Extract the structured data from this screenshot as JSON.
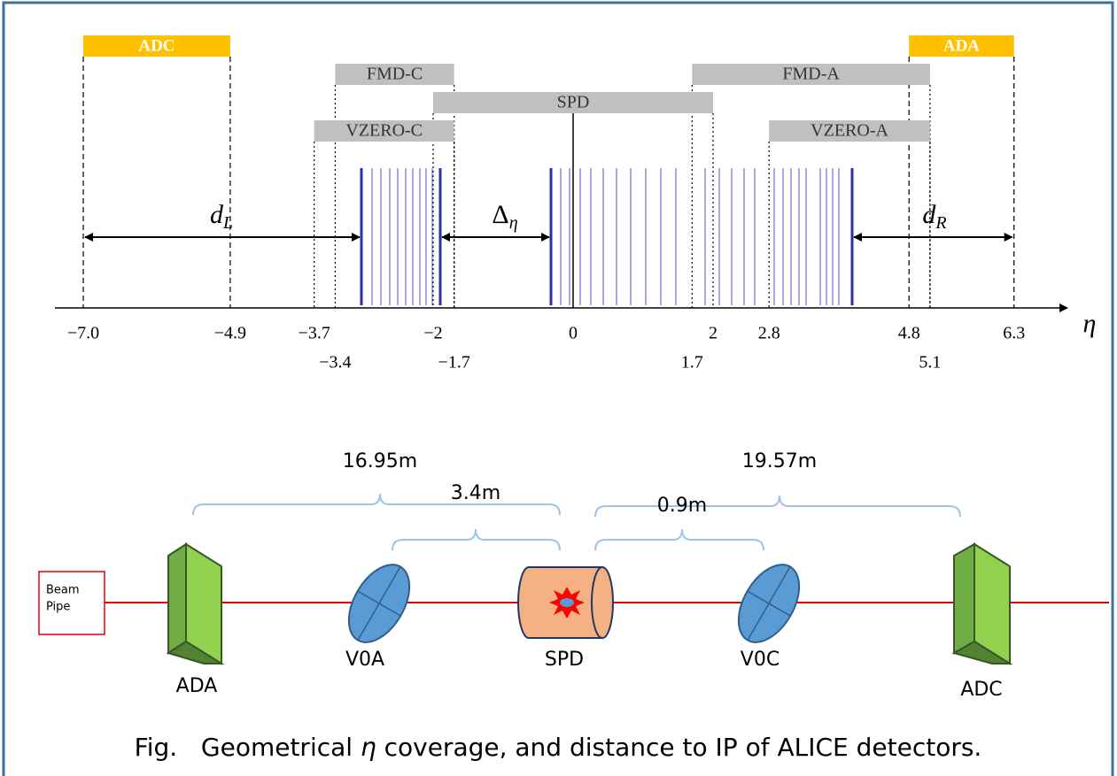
{
  "eta_chart": {
    "axis_label": "η",
    "ticks": [
      {
        "value": -7,
        "label": "−7.0"
      },
      {
        "value": -4.9,
        "label": "−4.9"
      },
      {
        "value": -3.7,
        "label": "−3.7"
      },
      {
        "value": -2,
        "label": "−2"
      },
      0,
      2,
      2.8,
      4.8,
      6.3
    ],
    "ticks_lower": [
      {
        "value": -3.4,
        "label": "−3.4"
      },
      {
        "value": -1.7,
        "label": "−1.7"
      },
      1.7,
      5.1
    ],
    "detectors": [
      {
        "label": "ADC",
        "range": [
          -7.0,
          -4.9
        ],
        "color": "#ffc000"
      },
      {
        "label": "ADA",
        "range": [
          4.8,
          6.3
        ],
        "color": "#ffc000"
      },
      {
        "label": "FMD-C",
        "range": [
          -3.4,
          -1.7
        ],
        "color": "#c0c0c0"
      },
      {
        "label": "FMD-A",
        "range": [
          1.7,
          5.1
        ],
        "color": "#c0c0c0"
      },
      {
        "label": "SPD",
        "range": [
          -2,
          2
        ],
        "color": "#c0c0c0"
      },
      {
        "label": "VZERO-C",
        "range": [
          -3.7,
          -1.7
        ],
        "color": "#c0c0c0"
      },
      {
        "label": "VZERO-A",
        "range": [
          2.8,
          5.1
        ],
        "color": "#c0c0c0"
      }
    ],
    "gaps": [
      {
        "symbol": "d",
        "subscript": "L"
      },
      {
        "symbol": "Δ",
        "subscript": "η"
      },
      {
        "symbol": "d",
        "subscript": "R"
      }
    ]
  },
  "layout": {
    "distances": [
      "16.95m",
      "3.4m",
      "0.9m",
      "19.57m"
    ],
    "detectors": [
      "ADA",
      "V0A",
      "SPD",
      "V0C",
      "ADC"
    ],
    "beam_pipe": [
      "Beam",
      "Pipe"
    ]
  },
  "caption": {
    "before": "Fig.   Geometrical ",
    "symbol": "η",
    "after": " coverage, and distance to IP of ALICE detectors."
  }
}
